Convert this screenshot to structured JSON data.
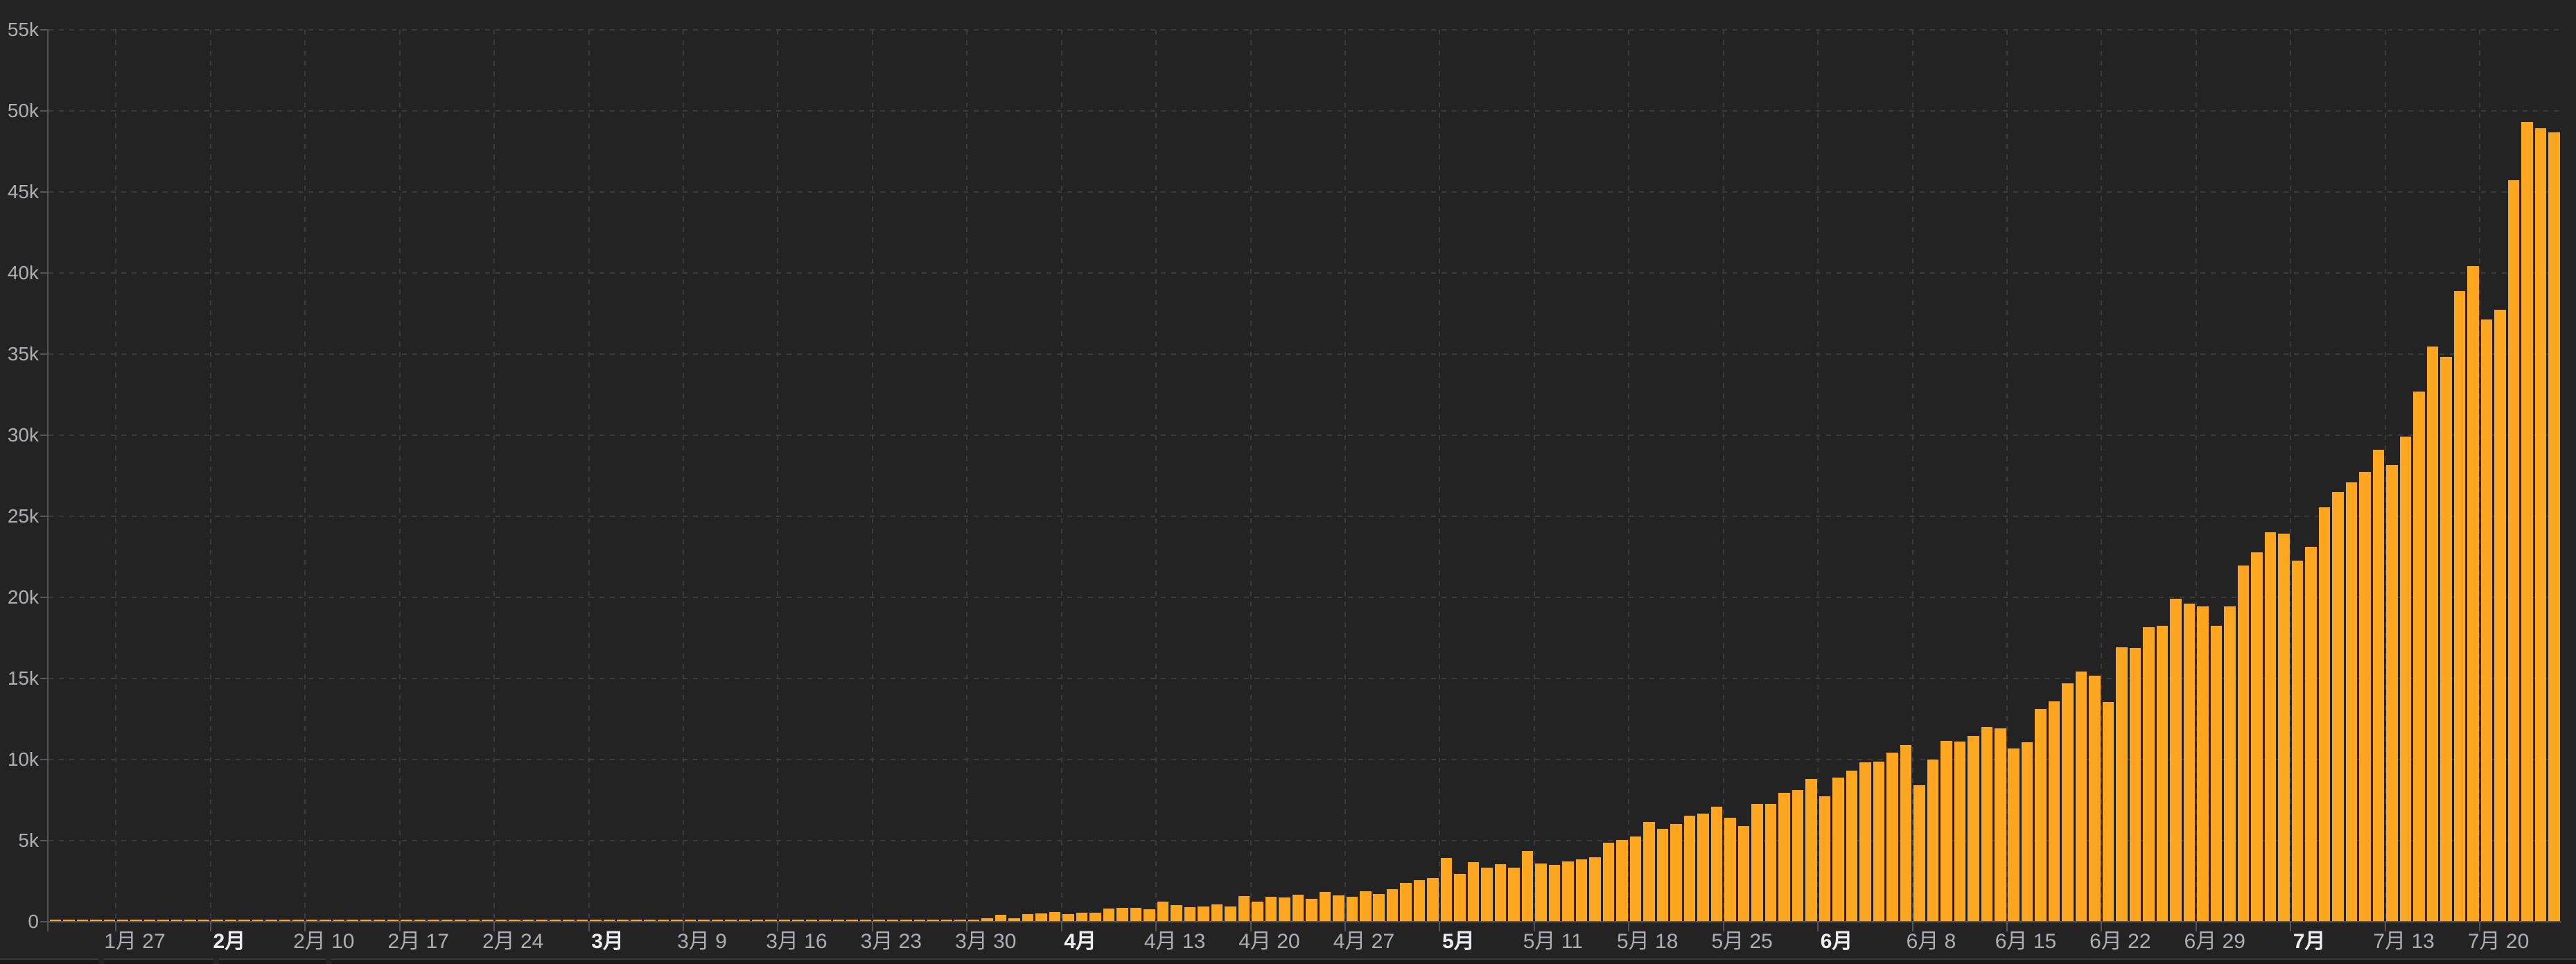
{
  "chart_data": {
    "type": "bar",
    "title": "",
    "ylim": [
      0,
      55000
    ],
    "grid": true,
    "legend": false,
    "y_ticks": [
      {
        "label": "0",
        "value": 0
      },
      {
        "label": "5k",
        "value": 5000
      },
      {
        "label": "10k",
        "value": 10000
      },
      {
        "label": "15k",
        "value": 15000
      },
      {
        "label": "20k",
        "value": 20000
      },
      {
        "label": "25k",
        "value": 25000
      },
      {
        "label": "30k",
        "value": 30000
      },
      {
        "label": "35k",
        "value": 35000
      },
      {
        "label": "40k",
        "value": 40000
      },
      {
        "label": "45k",
        "value": 45000
      },
      {
        "label": "50k",
        "value": 50000
      },
      {
        "label": "55k",
        "value": 55000
      }
    ],
    "x_ticks": [
      {
        "label": "1月 27",
        "index": 5,
        "bold": false
      },
      {
        "label": "2月",
        "index": 12,
        "bold": true
      },
      {
        "label": "2月 10",
        "index": 19,
        "bold": false
      },
      {
        "label": "2月 17",
        "index": 26,
        "bold": false
      },
      {
        "label": "2月 24",
        "index": 33,
        "bold": false
      },
      {
        "label": "3月",
        "index": 40,
        "bold": true
      },
      {
        "label": "3月 9",
        "index": 47,
        "bold": false
      },
      {
        "label": "3月 16",
        "index": 54,
        "bold": false
      },
      {
        "label": "3月 23",
        "index": 61,
        "bold": false
      },
      {
        "label": "3月 30",
        "index": 68,
        "bold": false
      },
      {
        "label": "4月",
        "index": 75,
        "bold": true
      },
      {
        "label": "4月 13",
        "index": 82,
        "bold": false
      },
      {
        "label": "4月 20",
        "index": 89,
        "bold": false
      },
      {
        "label": "4月 27",
        "index": 96,
        "bold": false
      },
      {
        "label": "5月",
        "index": 103,
        "bold": true
      },
      {
        "label": "5月 11",
        "index": 110,
        "bold": false
      },
      {
        "label": "5月 18",
        "index": 117,
        "bold": false
      },
      {
        "label": "5月 25",
        "index": 124,
        "bold": false
      },
      {
        "label": "6月",
        "index": 131,
        "bold": true
      },
      {
        "label": "6月 8",
        "index": 138,
        "bold": false
      },
      {
        "label": "6月 15",
        "index": 145,
        "bold": false
      },
      {
        "label": "6月 22",
        "index": 152,
        "bold": false
      },
      {
        "label": "6月 29",
        "index": 159,
        "bold": false
      },
      {
        "label": "7月",
        "index": 166,
        "bold": true
      },
      {
        "label": "7月 13",
        "index": 173,
        "bold": false
      },
      {
        "label": "7月 20",
        "index": 180,
        "bold": false
      }
    ],
    "values": [
      0,
      0,
      0,
      0,
      0,
      0,
      0,
      0,
      1,
      0,
      0,
      1,
      1,
      0,
      0,
      0,
      0,
      0,
      0,
      0,
      0,
      0,
      0,
      0,
      0,
      0,
      0,
      0,
      0,
      0,
      0,
      0,
      0,
      0,
      0,
      0,
      0,
      0,
      0,
      0,
      2,
      1,
      23,
      1,
      2,
      3,
      5,
      9,
      15,
      10,
      11,
      8,
      19,
      27,
      12,
      23,
      14,
      27,
      50,
      86,
      69,
      103,
      62,
      87,
      88,
      149,
      151,
      113,
      146,
      227,
      437,
      235,
      478,
      525,
      605,
      490,
      573,
      565,
      813,
      871,
      854,
      758,
      1243,
      1031,
      886,
      922,
      1061,
      925,
      1580,
      1239,
      1537,
      1486,
      1667,
      1408,
      1835,
      1607,
      1561,
      1902,
      1702,
      1993,
      2396,
      2564,
      2676,
      3932,
      2958,
      3656,
      3344,
      3563,
      3320,
      4353,
      3604,
      3525,
      3722,
      3844,
      3970,
      4864,
      5050,
      5242,
      6154,
      5720,
      6023,
      6536,
      6654,
      7113,
      6414,
      5907,
      7246,
      7254,
      7964,
      8138,
      8789,
      7723,
      8909,
      9304,
      9851,
      9887,
      10438,
      10884,
      8442,
      9985,
      11156,
      11128,
      11458,
      12031,
      11929,
      10667,
      11086,
      13108,
      13586,
      14721,
      15413,
      15183,
      13540,
      16922,
      16868,
      18185,
      18255,
      19906,
      19620,
      19459,
      18256,
      19429,
      21948,
      22771,
      24018,
      23942,
      22252,
      23135,
      25571,
      26506,
      27114,
      27754,
      29108,
      28179,
      29917,
      32682,
      35468,
      34820,
      38902,
      40425,
      37148,
      37724,
      45720,
      49310,
      48916,
      48661
    ],
    "colors": {
      "bar": "#FFA620",
      "background": "#232323",
      "grid": "#3B3B41",
      "axis": "#55565C",
      "tick_label": "#AEAEB4",
      "tick_label_bold": "#EDEDF2",
      "footer": "#191919",
      "footer_border": "#3A3A3A"
    }
  }
}
